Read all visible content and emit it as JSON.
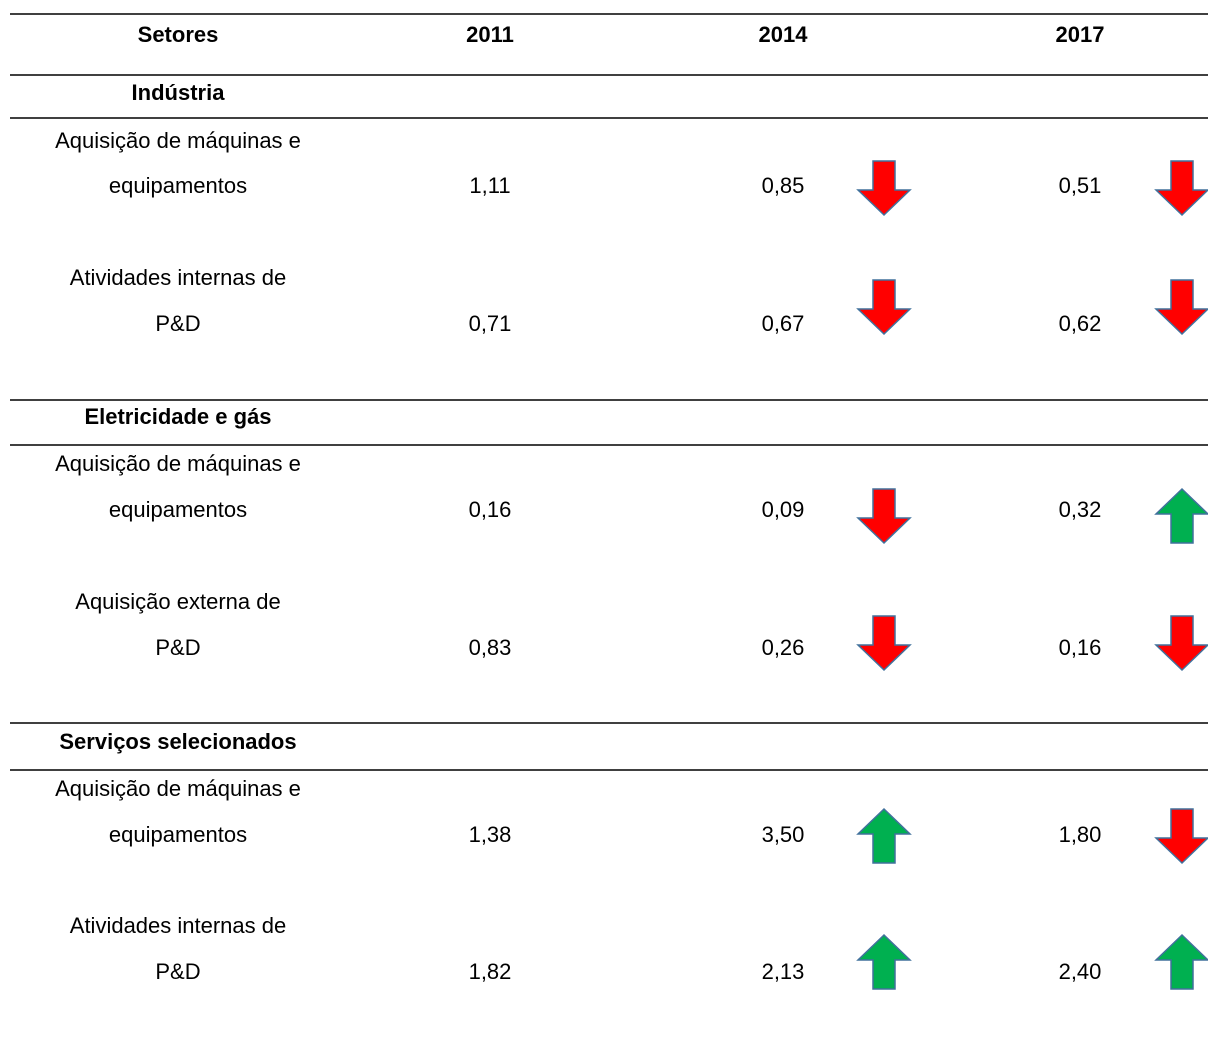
{
  "table": {
    "header": [
      "Setores",
      "2011",
      "2014",
      "2017"
    ],
    "sections": [
      {
        "title": "Indústria",
        "rows": [
          {
            "label": [
              "Aquisição de máquinas e",
              "equipamentos"
            ],
            "values": [
              "1,11",
              "0,85",
              "0,51"
            ]
          },
          {
            "label": [
              "Atividades internas de",
              "P&D"
            ],
            "values": [
              "0,71",
              "0,67",
              "0,62"
            ]
          }
        ]
      },
      {
        "title": "Eletricidade e gás",
        "rows": [
          {
            "label": [
              "Aquisição de máquinas e",
              "equipamentos"
            ],
            "values": [
              "0,16",
              "0,09",
              "0,32"
            ]
          },
          {
            "label": [
              "Aquisição externa de",
              "P&D"
            ],
            "values": [
              "0,83",
              "0,26",
              "0,16"
            ]
          }
        ]
      },
      {
        "title": "Serviços selecionados",
        "rows": [
          {
            "label": [
              "Aquisição de máquinas e",
              "equipamentos"
            ],
            "values": [
              "1,38",
              "3,50",
              "1,80"
            ]
          },
          {
            "label": [
              "Atividades internas de",
              "P&D"
            ],
            "values": [
              "1,82",
              "2,13",
              "2,40"
            ]
          }
        ]
      }
    ]
  }
}
